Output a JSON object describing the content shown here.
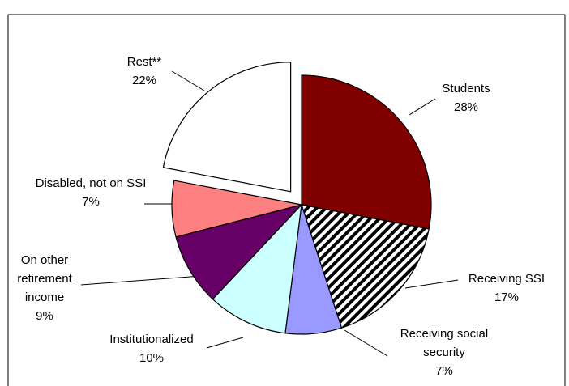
{
  "chart_data": {
    "type": "pie",
    "slices": [
      {
        "name": "Students",
        "value": 28,
        "value_label": "28%",
        "color": "#800000"
      },
      {
        "name": "Receiving SSI",
        "value": 17,
        "value_label": "17%",
        "color": "#000000",
        "pattern": "hatch"
      },
      {
        "name": "Receiving social security",
        "value": 7,
        "value_label": "7%",
        "color": "#9999ff"
      },
      {
        "name": "Institutionalized",
        "value": 10,
        "value_label": "10%",
        "color": "#ccffff"
      },
      {
        "name": "On other retirement income",
        "value": 9,
        "value_label": "9%",
        "color": "#660066"
      },
      {
        "name": "Disabled, not on SSI",
        "value": 7,
        "value_label": "7%",
        "color": "#ff8080"
      },
      {
        "name": "Rest**",
        "value": 22,
        "value_label": "22%",
        "color": "#ffffff",
        "exploded": true
      }
    ]
  }
}
